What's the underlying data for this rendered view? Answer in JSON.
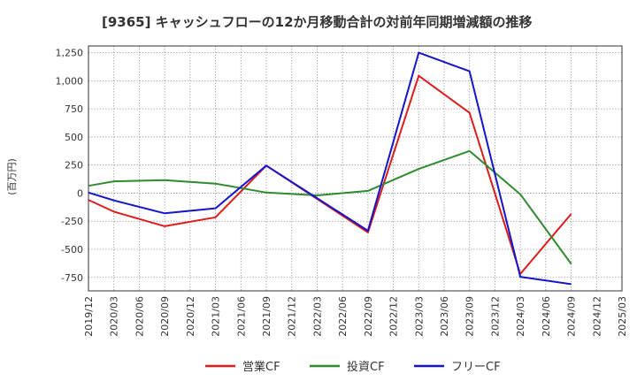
{
  "chart_data": {
    "type": "line",
    "title": "[9365]  キャッシュフローの12か月移動合計の対前年同期増減額の推移",
    "ylabel": "(百万円)",
    "xlabel": "",
    "ylim": [
      -870,
      1310
    ],
    "yticks": [
      1250,
      1000,
      750,
      500,
      250,
      0,
      -250,
      -500,
      -750
    ],
    "ytick_labels": [
      "1,250",
      "1,000",
      "750",
      "500",
      "250",
      "0",
      "-250",
      "-500",
      "-750"
    ],
    "categories": [
      "2019/12",
      "2020/03",
      "2020/06",
      "2020/09",
      "2020/12",
      "2021/03",
      "2021/06",
      "2021/09",
      "2021/12",
      "2022/03",
      "2022/06",
      "2022/09",
      "2022/12",
      "2023/03",
      "2023/06",
      "2023/09",
      "2023/12",
      "2024/03",
      "2024/06",
      "2024/09",
      "2024/12",
      "2025/03"
    ],
    "grid": true,
    "legend_position": "bottom",
    "series": [
      {
        "name": "営業CF",
        "color": "#dd1c1c",
        "values": [
          -60,
          -165,
          null,
          -295,
          null,
          -215,
          null,
          245,
          null,
          null,
          null,
          -350,
          null,
          1045,
          null,
          715,
          null,
          -720,
          null,
          -185,
          null,
          null
        ]
      },
      {
        "name": "投資CF",
        "color": "#2e8b2e",
        "values": [
          65,
          105,
          null,
          115,
          null,
          85,
          null,
          5,
          null,
          -20,
          null,
          20,
          null,
          215,
          null,
          375,
          null,
          -10,
          null,
          -630,
          null,
          null
        ]
      },
      {
        "name": "フリーCF",
        "color": "#1414cc",
        "values": [
          5,
          -65,
          null,
          -180,
          null,
          -135,
          null,
          245,
          null,
          null,
          null,
          -335,
          null,
          1250,
          null,
          1085,
          null,
          -745,
          null,
          -810,
          null,
          null
        ]
      }
    ]
  }
}
